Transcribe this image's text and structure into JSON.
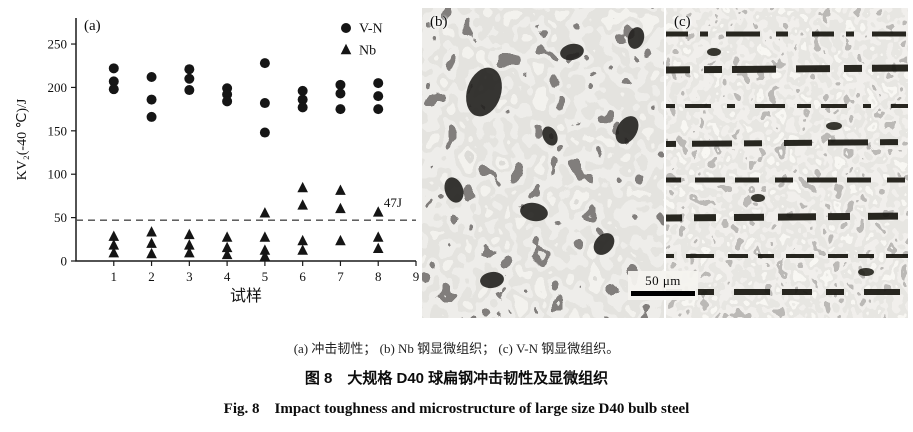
{
  "figure": {
    "panels": {
      "a": {
        "label": "(a)"
      },
      "b": {
        "label": "(b)",
        "scale_bar": "50 μm"
      },
      "c": {
        "label": "(c)"
      }
    },
    "captions": {
      "subcaptions": "(a) 冲击韧性； (b) Nb 钢显微组织； (c) V-N 钢显微组织。",
      "title_cn": "图 8　大规格 D40 球扁钢冲击韧性及显微组织",
      "title_en": "Fig. 8　Impact toughness and microstructure of large size D40 bulb steel"
    }
  },
  "chart_data": {
    "type": "scatter",
    "title": "",
    "xlabel": "试样",
    "ylabel": "KV₂(-40 ℃)/J",
    "xlim": [
      0,
      9
    ],
    "ylim": [
      0,
      280
    ],
    "xticks": [
      1,
      2,
      3,
      4,
      5,
      6,
      7,
      8,
      9
    ],
    "yticks": [
      0,
      50,
      100,
      150,
      200,
      250
    ],
    "grid": false,
    "legend_position": "top-right",
    "marker_color": "#151515",
    "reference_line": {
      "value": 47,
      "label": "47J",
      "style": "dashed"
    },
    "series": [
      {
        "name": "V-N",
        "marker": "circle",
        "points": [
          [
            1,
            222
          ],
          [
            1,
            207
          ],
          [
            1,
            198
          ],
          [
            2,
            212
          ],
          [
            2,
            186
          ],
          [
            2,
            166
          ],
          [
            3,
            221
          ],
          [
            3,
            210
          ],
          [
            3,
            197
          ],
          [
            4,
            199
          ],
          [
            4,
            192
          ],
          [
            4,
            184
          ],
          [
            5,
            228
          ],
          [
            5,
            182
          ],
          [
            5,
            148
          ],
          [
            6,
            196
          ],
          [
            6,
            186
          ],
          [
            6,
            177
          ],
          [
            7,
            203
          ],
          [
            7,
            193
          ],
          [
            7,
            175
          ],
          [
            8,
            205
          ],
          [
            8,
            190
          ],
          [
            8,
            175
          ]
        ]
      },
      {
        "name": "Nb",
        "marker": "triangle",
        "points": [
          [
            1,
            28
          ],
          [
            1,
            18
          ],
          [
            1,
            9
          ],
          [
            2,
            33
          ],
          [
            2,
            20
          ],
          [
            2,
            8
          ],
          [
            3,
            30
          ],
          [
            3,
            18
          ],
          [
            3,
            9
          ],
          [
            4,
            27
          ],
          [
            4,
            15
          ],
          [
            4,
            7
          ],
          [
            5,
            55
          ],
          [
            5,
            27
          ],
          [
            5,
            12
          ],
          [
            5,
            5
          ],
          [
            6,
            84
          ],
          [
            6,
            64
          ],
          [
            6,
            23
          ],
          [
            6,
            12
          ],
          [
            7,
            81
          ],
          [
            7,
            60
          ],
          [
            7,
            23
          ],
          [
            8,
            56
          ],
          [
            8,
            27
          ],
          [
            8,
            14
          ]
        ]
      }
    ]
  }
}
